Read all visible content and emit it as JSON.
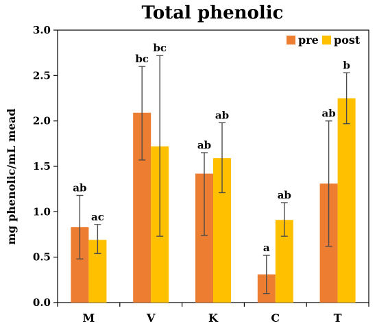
{
  "chart_data": {
    "type": "bar",
    "title": "Total phenolic",
    "ylabel": "mg phenolic/mL mead",
    "xlabel": "",
    "ylim": [
      0,
      3.0
    ],
    "yticks": [
      "0.0",
      "0.5",
      "1.0",
      "1.5",
      "2.0",
      "2.5",
      "3.0"
    ],
    "categories": [
      "M",
      "V",
      "K",
      "C",
      "T"
    ],
    "legend_position": "top-right",
    "grid": false,
    "series": [
      {
        "name": "pre",
        "color": "#ED7D31",
        "values": [
          0.83,
          2.09,
          1.42,
          0.31,
          1.31
        ],
        "error_low": [
          0.48,
          1.57,
          0.74,
          0.1,
          0.62
        ],
        "error_high": [
          1.18,
          2.6,
          1.65,
          0.52,
          2.0
        ],
        "letters": [
          "ab",
          "bc",
          "ab",
          "a",
          "ab"
        ]
      },
      {
        "name": "post",
        "color": "#FFC000",
        "values": [
          0.69,
          1.72,
          1.59,
          0.91,
          2.25
        ],
        "error_low": [
          0.54,
          0.73,
          1.21,
          0.73,
          1.97
        ],
        "error_high": [
          0.86,
          2.72,
          1.98,
          1.1,
          2.53
        ],
        "letters": [
          "ac",
          "bc",
          "ab",
          "ab",
          "b"
        ]
      }
    ]
  }
}
